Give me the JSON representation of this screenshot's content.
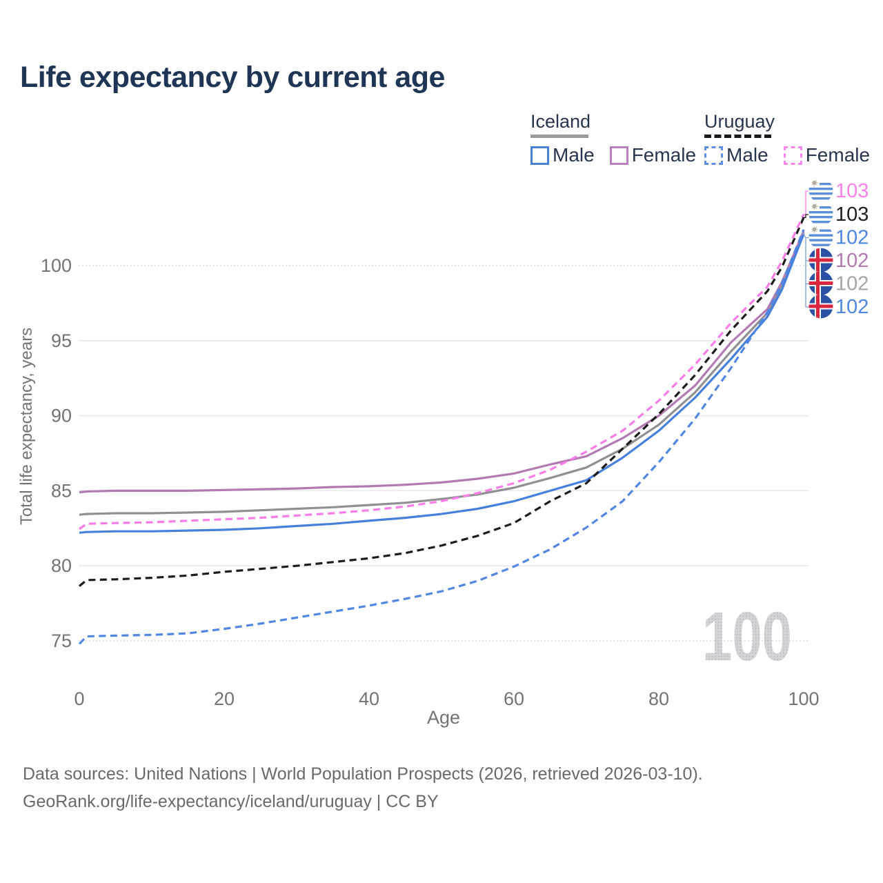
{
  "header": {
    "title": "Life expectancy by current age"
  },
  "legend": {
    "groups": [
      {
        "label": "Iceland",
        "line_style": "solid",
        "items": [
          {
            "label": "Male",
            "color": "#4a80dc"
          },
          {
            "label": "Female",
            "color": "#b87fba"
          }
        ]
      },
      {
        "label": "Uruguay",
        "line_style": "dashed",
        "items": [
          {
            "label": "Male",
            "color": "#5b8de0"
          },
          {
            "label": "Female",
            "color": "#fb86ec"
          }
        ]
      }
    ]
  },
  "chart_data": {
    "type": "line",
    "title": "Life expectancy by current age",
    "xlabel": "Age",
    "ylabel": "Total life expectancy, years",
    "x_ticks": [
      0,
      20,
      40,
      60,
      80,
      100
    ],
    "y_ticks": [
      75,
      80,
      85,
      90,
      95,
      100
    ],
    "xlim": [
      0,
      100
    ],
    "ylim": [
      75,
      100
    ],
    "grid": "horizontal",
    "legend_position": "top-right",
    "watermark": "100",
    "x": [
      0,
      1,
      5,
      10,
      15,
      20,
      25,
      30,
      35,
      40,
      45,
      50,
      55,
      60,
      65,
      70,
      75,
      80,
      85,
      90,
      95,
      97,
      100
    ],
    "series": [
      {
        "name": "Iceland All",
        "country": "Iceland",
        "sex": "All",
        "line": "solid",
        "color": "#909094",
        "flag": "iceland",
        "end_label": "102",
        "end_label_color": "#a5a5a9",
        "values": [
          83.4,
          83.45,
          83.5,
          83.5,
          83.55,
          83.6,
          83.7,
          83.8,
          83.9,
          84.05,
          84.2,
          84.45,
          84.75,
          85.2,
          85.85,
          86.55,
          87.8,
          89.4,
          91.55,
          94.3,
          96.85,
          98.6,
          102.2
        ]
      },
      {
        "name": "Iceland Female",
        "country": "Iceland",
        "sex": "Female",
        "line": "solid",
        "color": "#b279b2",
        "flag": "iceland",
        "end_label": "102",
        "end_label_color": "#b279b2",
        "values": [
          84.9,
          84.95,
          85.0,
          85.0,
          85.0,
          85.05,
          85.1,
          85.15,
          85.25,
          85.3,
          85.4,
          85.55,
          85.8,
          86.15,
          86.75,
          87.3,
          88.5,
          90.0,
          92.0,
          94.9,
          97.1,
          98.9,
          102.3
        ]
      },
      {
        "name": "Iceland Male",
        "country": "Iceland",
        "sex": "Male",
        "line": "solid",
        "color": "#4680dd",
        "flag": "iceland",
        "end_label": "102",
        "end_label_color": "#4f86e0",
        "values": [
          82.2,
          82.25,
          82.3,
          82.3,
          82.35,
          82.4,
          82.5,
          82.65,
          82.8,
          83.0,
          83.2,
          83.45,
          83.8,
          84.3,
          85.0,
          85.7,
          87.2,
          89.0,
          91.2,
          93.8,
          96.6,
          98.4,
          102.1
        ]
      },
      {
        "name": "Uruguay All",
        "country": "Uruguay",
        "sex": "All",
        "line": "dashed",
        "color": "#1c1c1c",
        "flag": "uruguay",
        "end_label": "103",
        "end_label_color": "#1f1f1f",
        "values": [
          78.65,
          79.05,
          79.1,
          79.2,
          79.35,
          79.6,
          79.8,
          80.0,
          80.25,
          80.5,
          80.85,
          81.35,
          82.0,
          82.85,
          84.3,
          85.5,
          87.8,
          90.1,
          92.7,
          95.7,
          98.3,
          99.9,
          103.2
        ]
      },
      {
        "name": "Uruguay Female",
        "country": "Uruguay",
        "sex": "Female",
        "line": "dashed",
        "color": "#fa7ce8",
        "flag": "uruguay",
        "end_label": "103",
        "end_label_color": "#fb82e6",
        "values": [
          82.45,
          82.8,
          82.85,
          82.9,
          83.0,
          83.1,
          83.2,
          83.35,
          83.5,
          83.7,
          83.95,
          84.3,
          84.85,
          85.5,
          86.4,
          87.6,
          89.0,
          91.0,
          93.4,
          96.2,
          98.6,
          100.3,
          103.4
        ]
      },
      {
        "name": "Uruguay Male",
        "country": "Uruguay",
        "sex": "Male",
        "line": "dashed",
        "color": "#5187e2",
        "flag": "uruguay",
        "end_label": "102",
        "end_label_color": "#4f86e0",
        "values": [
          74.8,
          75.3,
          75.35,
          75.4,
          75.5,
          75.8,
          76.15,
          76.55,
          76.95,
          77.35,
          77.8,
          78.3,
          79.0,
          79.95,
          81.1,
          82.55,
          84.3,
          86.9,
          89.8,
          93.2,
          96.9,
          98.8,
          102.4
        ]
      }
    ]
  },
  "footer": {
    "line1": "Data sources: United Nations | World Population Prospects (2026, retrieved 2026-03-10).",
    "line2": "GeoRank.org/life-expectancy/iceland/uruguay | CC BY"
  }
}
